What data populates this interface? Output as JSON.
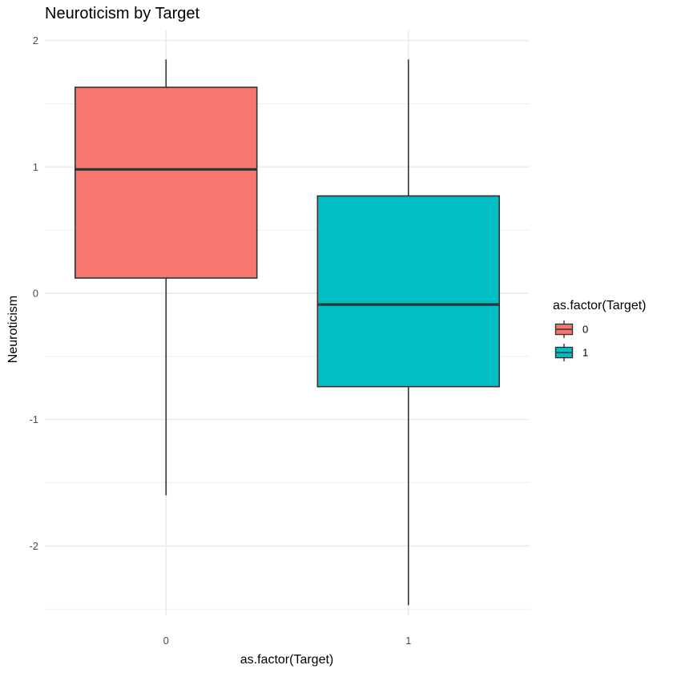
{
  "chart_data": {
    "type": "boxplot",
    "title": "Neuroticism by Target",
    "xlabel": "as.factor(Target)",
    "ylabel": "Neuroticism",
    "ylim": [
      -2.55,
      2.08
    ],
    "yticks": [
      -2,
      -1,
      0,
      1,
      2
    ],
    "ytick_labels": [
      "-2",
      "-1",
      "0",
      "1",
      "2"
    ],
    "grid": true,
    "categories": [
      "0",
      "1"
    ],
    "boxes": [
      {
        "category": "0",
        "whisker_low": -1.6,
        "q1": 0.12,
        "median": 0.98,
        "q3": 1.63,
        "whisker_high": 1.85,
        "color": "#F8766D"
      },
      {
        "category": "1",
        "whisker_low": -2.47,
        "q1": -0.74,
        "median": -0.09,
        "q3": 0.77,
        "whisker_high": 1.85,
        "color": "#00BFC4"
      }
    ],
    "legend": {
      "title": "as.factor(Target)",
      "position": "right",
      "entries": [
        {
          "label": "0",
          "color": "#F8766D"
        },
        {
          "label": "1",
          "color": "#00BFC4"
        }
      ]
    },
    "colors": {
      "grid": "#ebebeb",
      "outline": "#333333",
      "tick_text": "#4d4d4d"
    }
  }
}
